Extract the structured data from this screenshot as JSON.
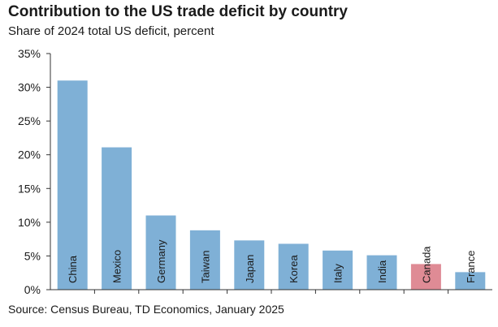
{
  "chart_data": {
    "type": "bar",
    "title": "Contribution to the US trade deficit by country",
    "subtitle": "Share of 2024 total US deficit, percent",
    "source": "Source: Census Bureau, TD Economics, January 2025",
    "categories": [
      "China",
      "Mexico",
      "Germany",
      "Taiwan",
      "Japan",
      "Korea",
      "Italy",
      "India",
      "Canada",
      "France"
    ],
    "values": [
      31,
      21.1,
      11,
      8.8,
      7.3,
      6.8,
      5.8,
      5.1,
      3.8,
      2.6
    ],
    "ylim": [
      0,
      35
    ],
    "yticks": [
      0,
      5,
      10,
      15,
      20,
      25,
      30,
      35
    ],
    "ytick_labels": [
      "0%",
      "5%",
      "10%",
      "15%",
      "20%",
      "25%",
      "30%",
      "35%"
    ],
    "grid": false,
    "colors": {
      "bar": "#7fb0d6",
      "highlight": "#df8b95",
      "axis": "#333333"
    },
    "highlight_category": "Canada"
  }
}
